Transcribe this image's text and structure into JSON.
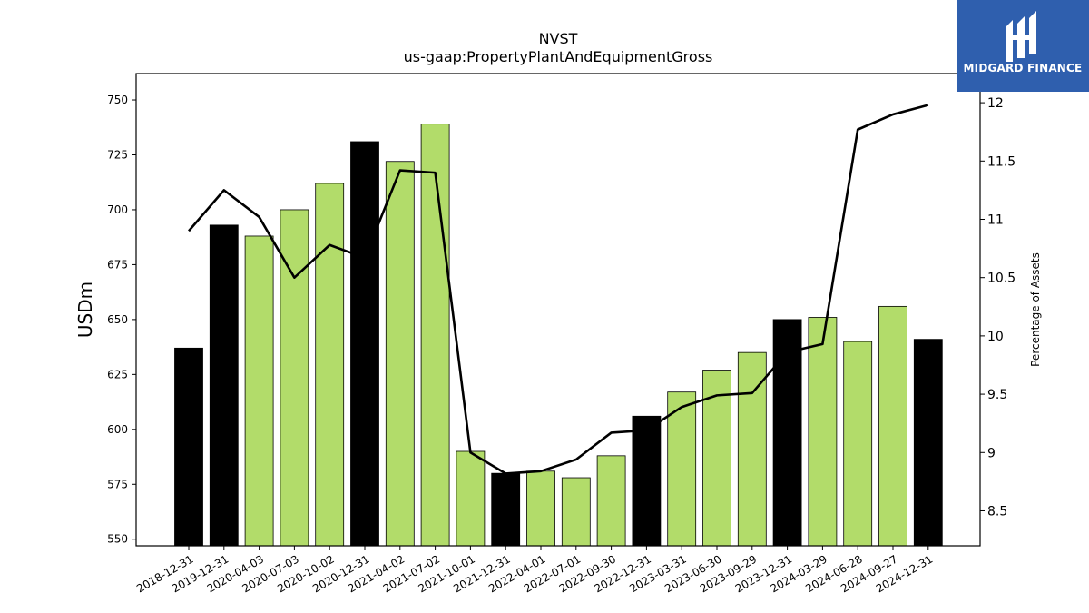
{
  "chart_data": {
    "type": "bar",
    "title": "NVST",
    "subtitle": "us-gaap:PropertyPlantAndEquipmentGross",
    "ylabel": "USDm",
    "y2label": "Percentage of Assets",
    "ylim": [
      547,
      762
    ],
    "y2lim": [
      8.2,
      12.25
    ],
    "yticks": [
      550,
      575,
      600,
      625,
      650,
      675,
      700,
      725,
      750
    ],
    "y2ticks": [
      8.5,
      9.0,
      9.5,
      10.0,
      10.5,
      11.0,
      11.5,
      12.0
    ],
    "categories": [
      "2018-12-31",
      "2019-12-31",
      "2020-04-03",
      "2020-07-03",
      "2020-10-02",
      "2020-12-31",
      "2021-04-02",
      "2021-07-02",
      "2021-10-01",
      "2021-12-31",
      "2022-04-01",
      "2022-07-01",
      "2022-09-30",
      "2022-12-31",
      "2023-03-31",
      "2023-06-30",
      "2023-09-29",
      "2023-12-31",
      "2024-03-29",
      "2024-06-28",
      "2024-09-27",
      "2024-12-31"
    ],
    "series": [
      {
        "type": "bar",
        "values": [
          637,
          693,
          688,
          700,
          712,
          731,
          722,
          739,
          590,
          580,
          581,
          578,
          588,
          606,
          617,
          627,
          635,
          650,
          651,
          640,
          656,
          641
        ],
        "colors": [
          "#000000",
          "#000000",
          "#b2dc6a",
          "#b2dc6a",
          "#b2dc6a",
          "#000000",
          "#b2dc6a",
          "#b2dc6a",
          "#b2dc6a",
          "#000000",
          "#b2dc6a",
          "#b2dc6a",
          "#b2dc6a",
          "#000000",
          "#b2dc6a",
          "#b2dc6a",
          "#b2dc6a",
          "#000000",
          "#b2dc6a",
          "#b2dc6a",
          "#b2dc6a",
          "#000000"
        ]
      },
      {
        "type": "line",
        "axis": "right",
        "color": "#000000",
        "values": [
          10.9,
          11.25,
          11.02,
          10.5,
          10.78,
          10.67,
          11.42,
          11.4,
          9.0,
          8.82,
          8.84,
          8.94,
          9.17,
          9.19,
          9.39,
          9.49,
          9.51,
          9.86,
          9.93,
          11.77,
          11.9,
          11.98
        ]
      }
    ]
  },
  "watermark": {
    "text": "MIDGARD FINANCE",
    "background": "#2f5fae"
  }
}
